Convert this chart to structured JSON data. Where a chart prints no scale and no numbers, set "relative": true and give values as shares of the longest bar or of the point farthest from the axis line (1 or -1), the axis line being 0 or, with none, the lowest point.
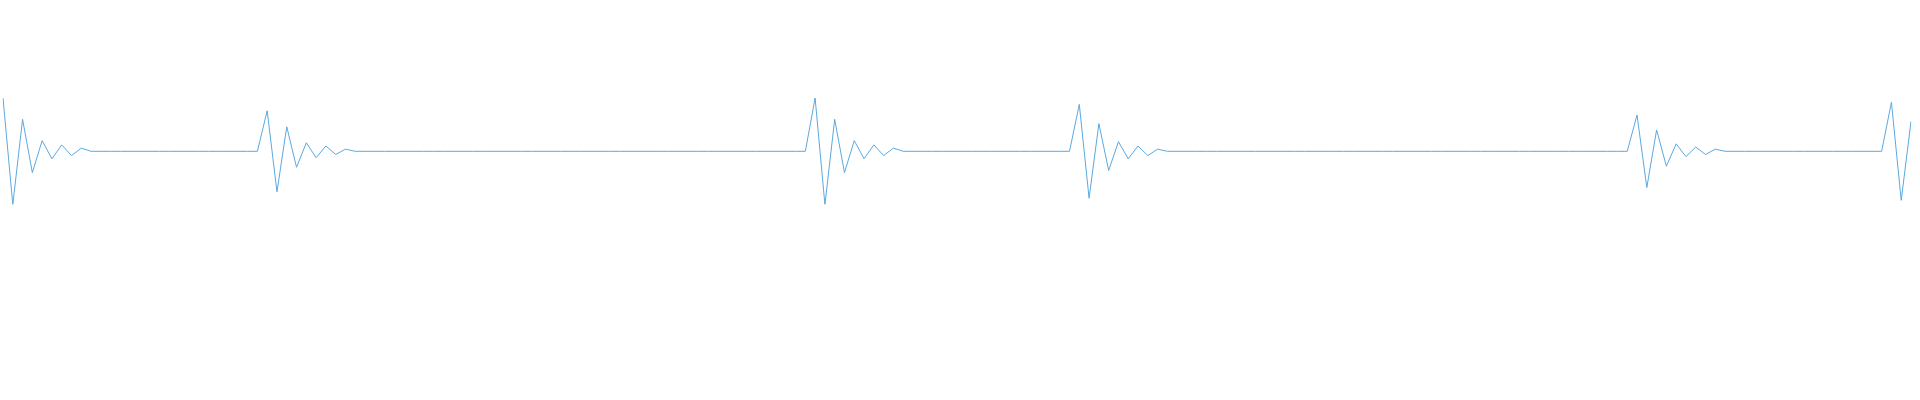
{
  "chart_data": {
    "type": "line",
    "relative": true,
    "marker": "none",
    "grid": false,
    "legend": false,
    "categories": [
      null,
      null,
      null,
      null,
      null,
      null,
      null,
      null,
      null,
      null,
      null,
      null,
      null,
      null,
      null,
      null,
      null,
      null,
      null,
      null,
      null,
      null,
      null,
      null,
      null,
      null,
      null,
      null,
      null,
      null,
      null,
      null,
      null,
      null,
      null,
      null,
      null,
      null,
      null,
      null,
      null,
      null,
      null,
      null,
      null,
      null,
      null,
      null,
      null,
      null,
      null,
      null,
      null,
      null,
      null,
      null,
      null,
      null,
      null,
      null,
      null,
      null,
      null,
      null,
      null,
      null,
      null,
      null,
      null,
      null,
      null,
      null,
      null,
      null,
      null,
      null,
      null,
      null,
      null,
      null,
      null,
      null,
      null,
      null,
      null,
      null,
      null,
      null,
      null,
      null,
      null,
      null,
      null,
      null,
      null,
      null,
      null,
      null,
      null,
      null,
      null,
      null,
      null,
      null,
      null,
      null,
      null,
      null,
      null,
      null,
      null,
      null,
      null,
      null,
      null,
      null,
      null,
      null,
      null,
      null,
      null,
      null,
      null,
      null,
      null,
      null,
      null,
      null,
      null,
      null,
      null,
      null,
      null,
      null,
      null,
      null,
      null,
      null,
      null,
      null,
      null,
      null,
      null,
      null,
      null,
      null,
      null,
      null,
      null,
      null,
      null,
      null,
      null,
      null,
      null,
      null,
      null,
      null,
      null,
      null,
      null,
      null,
      null,
      null,
      null,
      null,
      null,
      null,
      null,
      null,
      null,
      null,
      null,
      null,
      null,
      null,
      null,
      null,
      null,
      null,
      null,
      null,
      null,
      null,
      null,
      null,
      null,
      null,
      null,
      null,
      null,
      null,
      null,
      null,
      null,
      null
    ],
    "series": [
      {
        "color": "#5aa9e0",
        "values": [
          1,
          0,
          0.8,
          0.3,
          0.6,
          0.43,
          0.56,
          0.46,
          0.53,
          0.5,
          0.5,
          0.5,
          0.5,
          0.5,
          0.5,
          0.5,
          0.5,
          0.5,
          0.5,
          0.5,
          0.5,
          0.5,
          0.5,
          0.5,
          0.5,
          0.5,
          0.5,
          0.88,
          0.12,
          0.73,
          0.35,
          0.58,
          0.44,
          0.55,
          0.47,
          0.52,
          0.5,
          0.5,
          0.5,
          0.5,
          0.5,
          0.5,
          0.5,
          0.5,
          0.5,
          0.5,
          0.5,
          0.5,
          0.5,
          0.5,
          0.5,
          0.5,
          0.5,
          0.5,
          0.5,
          0.5,
          0.5,
          0.5,
          0.5,
          0.5,
          0.5,
          0.5,
          0.5,
          0.5,
          0.5,
          0.5,
          0.5,
          0.5,
          0.5,
          0.5,
          0.5,
          0.5,
          0.5,
          0.5,
          0.5,
          0.5,
          0.5,
          0.5,
          0.5,
          0.5,
          0.5,
          0.5,
          0.5,
          1,
          0,
          0.8,
          0.3,
          0.6,
          0.43,
          0.56,
          0.46,
          0.53,
          0.5,
          0.5,
          0.5,
          0.5,
          0.5,
          0.5,
          0.5,
          0.5,
          0.5,
          0.5,
          0.5,
          0.5,
          0.5,
          0.5,
          0.5,
          0.5,
          0.5,
          0.5,
          0.94,
          0.06,
          0.76,
          0.32,
          0.59,
          0.43,
          0.55,
          0.46,
          0.52,
          0.5,
          0.5,
          0.5,
          0.5,
          0.5,
          0.5,
          0.5,
          0.5,
          0.5,
          0.5,
          0.5,
          0.5,
          0.5,
          0.5,
          0.5,
          0.5,
          0.5,
          0.5,
          0.5,
          0.5,
          0.5,
          0.5,
          0.5,
          0.5,
          0.5,
          0.5,
          0.5,
          0.5,
          0.5,
          0.5,
          0.5,
          0.5,
          0.5,
          0.5,
          0.5,
          0.5,
          0.5,
          0.5,
          0.5,
          0.5,
          0.5,
          0.5,
          0.5,
          0.5,
          0.5,
          0.5,
          0.5,
          0.5,
          0.84,
          0.16,
          0.7,
          0.36,
          0.57,
          0.45,
          0.54,
          0.47,
          0.52,
          0.5,
          0.5,
          0.5,
          0.5,
          0.5,
          0.5,
          0.5,
          0.5,
          0.5,
          0.5,
          0.5,
          0.5,
          0.5,
          0.5,
          0.5,
          0.5,
          0.5,
          0.96,
          0.04,
          0.78
        ]
      }
    ]
  }
}
